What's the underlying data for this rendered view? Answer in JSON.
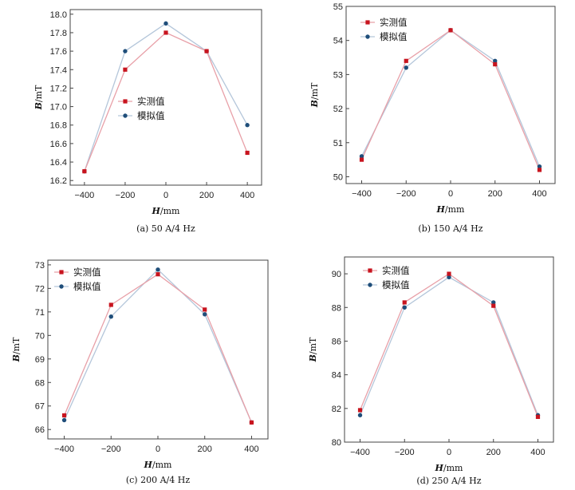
{
  "colors": {
    "measured": "#c8141e",
    "simulated": "#1f4e7a",
    "measured_line": "#e8a0a8",
    "simulated_line": "#b4c6da"
  },
  "chart_data": [
    {
      "type": "line",
      "caption": "(a) 50 A/4 Hz",
      "xlabel_italic": "H",
      "xlabel_unit": "/mm",
      "ylabel_italic": "B",
      "ylabel_unit": "/mT",
      "x": [
        -400,
        -200,
        0,
        200,
        400
      ],
      "xticks": [
        "-400",
        "-200",
        "0",
        "200",
        "400"
      ],
      "xlim": [
        -470,
        470
      ],
      "ylim": [
        16.15,
        18.05
      ],
      "yticks": [
        16.2,
        16.4,
        16.6,
        16.8,
        17.0,
        17.2,
        17.4,
        17.6,
        17.8,
        18.0
      ],
      "ytick_labels": [
        "16.2",
        "16.4",
        "16.6",
        "16.8",
        "17.0",
        "17.2",
        "17.4",
        "17.6",
        "17.8",
        "18.0"
      ],
      "legend": {
        "placement": "center",
        "entries": [
          "实测值",
          "模拟值"
        ]
      },
      "series": [
        {
          "name": "实测值",
          "values": [
            16.3,
            17.4,
            17.8,
            17.6,
            16.5
          ]
        },
        {
          "name": "模拟值",
          "values": [
            16.3,
            17.6,
            17.9,
            17.6,
            16.8
          ]
        }
      ]
    },
    {
      "type": "line",
      "caption": "(b) 150 A/4 Hz",
      "xlabel_italic": "H",
      "xlabel_unit": "/mm",
      "ylabel_italic": "B",
      "ylabel_unit": "/mT",
      "x": [
        -400,
        -200,
        0,
        200,
        400
      ],
      "xticks": [
        "-400",
        "-200",
        "0",
        "200",
        "400"
      ],
      "xlim": [
        -470,
        470
      ],
      "ylim": [
        49.8,
        55.0
      ],
      "yticks": [
        50,
        51,
        52,
        53,
        54,
        55
      ],
      "ytick_labels": [
        "50",
        "51",
        "52",
        "53",
        "54",
        "55"
      ],
      "legend": {
        "placement": "top-left",
        "entries": [
          "实测值",
          "模拟值"
        ]
      },
      "series": [
        {
          "name": "实测值",
          "values": [
            50.5,
            53.4,
            54.3,
            53.3,
            50.2
          ]
        },
        {
          "name": "模拟值",
          "values": [
            50.6,
            53.2,
            54.3,
            53.4,
            50.3
          ]
        }
      ]
    },
    {
      "type": "line",
      "caption": "(c) 200 A/4 Hz",
      "xlabel_italic": "H",
      "xlabel_unit": "/mm",
      "ylabel_italic": "B",
      "ylabel_unit": "/mT",
      "x": [
        -400,
        -200,
        0,
        200,
        400
      ],
      "xticks": [
        "-400",
        "-200",
        "0",
        "200",
        "400"
      ],
      "xlim": [
        -470,
        470
      ],
      "ylim": [
        65.6,
        73.2
      ],
      "yticks": [
        66,
        67,
        68,
        69,
        70,
        71,
        72,
        73
      ],
      "ytick_labels": [
        "66",
        "67",
        "68",
        "69",
        "70",
        "71",
        "72",
        "73"
      ],
      "legend": {
        "placement": "top-left",
        "entries": [
          "实测值",
          "模拟值"
        ]
      },
      "series": [
        {
          "name": "实测值",
          "values": [
            66.6,
            71.3,
            72.6,
            71.1,
            66.3
          ]
        },
        {
          "name": "模拟值",
          "values": [
            66.4,
            70.8,
            72.8,
            70.9,
            66.3
          ]
        }
      ]
    },
    {
      "type": "line",
      "caption": "(d) 250 A/4 Hz",
      "xlabel_italic": "H",
      "xlabel_unit": "/mm",
      "ylabel_italic": "B",
      "ylabel_unit": "/mT",
      "x": [
        -400,
        -200,
        0,
        200,
        400
      ],
      "xticks": [
        "-400",
        "-200",
        "0",
        "200",
        "400"
      ],
      "xlim": [
        -470,
        470
      ],
      "ylim": [
        80.0,
        91.0
      ],
      "yticks": [
        80,
        82,
        84,
        86,
        88,
        90
      ],
      "ytick_labels": [
        "80",
        "82",
        "84",
        "86",
        "88",
        "90"
      ],
      "legend": {
        "placement": "top-left",
        "entries": [
          "实测值",
          "模拟值"
        ]
      },
      "series": [
        {
          "name": "实测值",
          "values": [
            81.9,
            88.3,
            90.0,
            88.1,
            81.5
          ]
        },
        {
          "name": "模拟值",
          "values": [
            81.6,
            88.0,
            89.8,
            88.3,
            81.6
          ]
        }
      ]
    }
  ]
}
